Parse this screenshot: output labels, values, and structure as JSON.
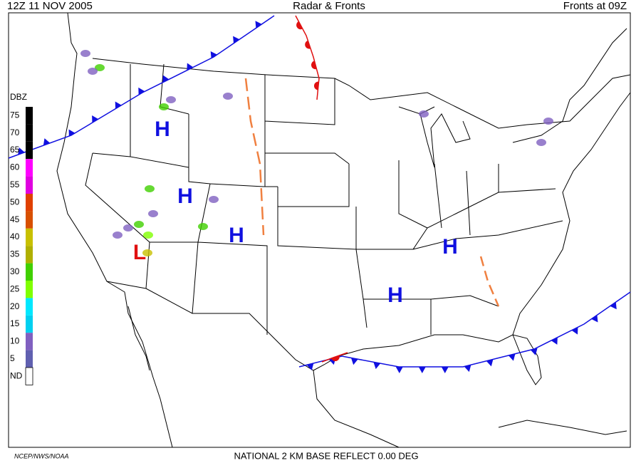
{
  "header": {
    "left": "12Z  11 NOV  2005",
    "center": "Radar & Fronts",
    "right": "Fronts at 09Z"
  },
  "legend": {
    "title": "DBZ",
    "levels": [
      {
        "value": 75,
        "color": "#000000"
      },
      {
        "value": 70,
        "color": "#000000"
      },
      {
        "value": 65,
        "color": "#000000"
      },
      {
        "value": 60,
        "color": "#ff00ff"
      },
      {
        "value": 55,
        "color": "#e000e0"
      },
      {
        "value": 50,
        "color": "#e04000"
      },
      {
        "value": 45,
        "color": "#d85000"
      },
      {
        "value": 40,
        "color": "#c8c000"
      },
      {
        "value": 35,
        "color": "#b0b000"
      },
      {
        "value": 30,
        "color": "#40d000"
      },
      {
        "value": 25,
        "color": "#80ff00"
      },
      {
        "value": 20,
        "color": "#00e8ff"
      },
      {
        "value": 15,
        "color": "#00d0f0"
      },
      {
        "value": 10,
        "color": "#8060c0"
      },
      {
        "value": 5,
        "color": "#6060b0"
      }
    ],
    "none_label": "ND",
    "none_color": "#ffffff"
  },
  "centers": [
    {
      "label": "H",
      "color": "#1010e0"
    },
    {
      "label": "H",
      "color": "#1010e0"
    },
    {
      "label": "H",
      "color": "#1010e0"
    },
    {
      "label": "L",
      "color": "#e01010"
    },
    {
      "label": "H",
      "color": "#1010e0"
    },
    {
      "label": "H",
      "color": "#1010e0"
    }
  ],
  "footer": {
    "left": "NCEP/NWS/NOAA",
    "center": "NATIONAL 2 KM BASE REFLECT 0.00 DEG"
  }
}
